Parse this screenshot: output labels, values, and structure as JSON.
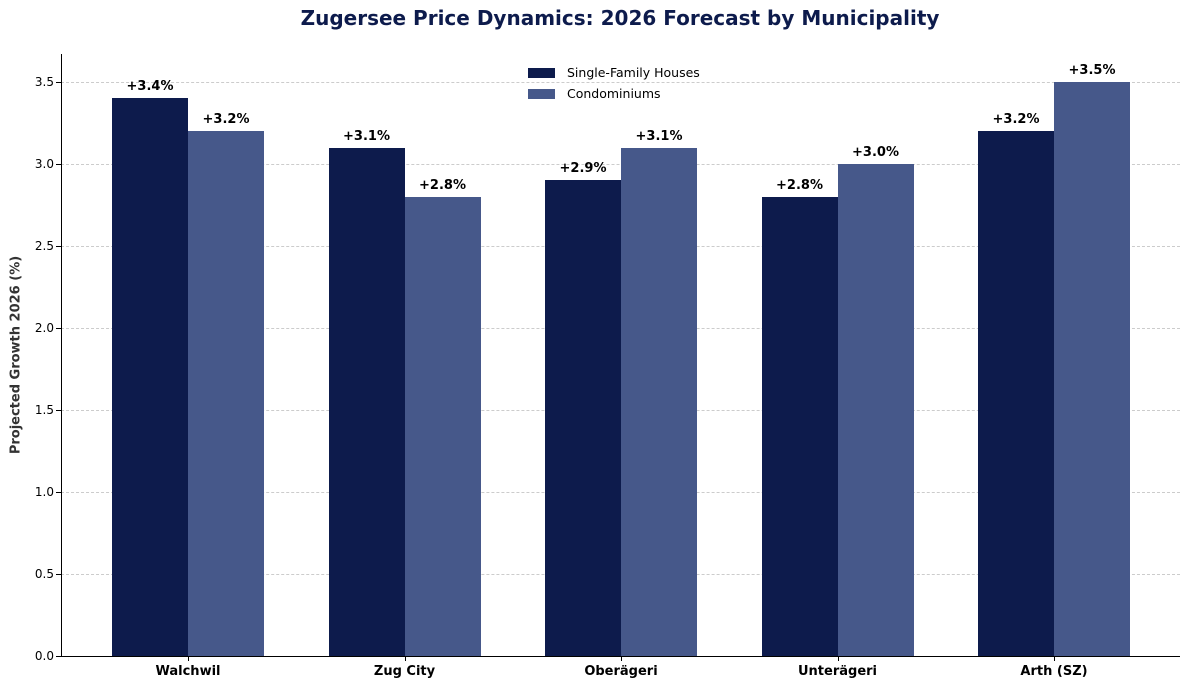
{
  "chart_data": {
    "type": "bar",
    "title": "Zugersee Price Dynamics: 2026 Forecast by Municipality",
    "xlabel": "",
    "ylabel": "Projected Growth 2026 (%)",
    "categories": [
      "Walchwil",
      "Zug City",
      "Oberägeri",
      "Unterägeri",
      "Arth (SZ)"
    ],
    "series": [
      {
        "name": "Single-Family Houses",
        "color": "#0d1b4c",
        "values": [
          3.4,
          3.1,
          2.9,
          2.8,
          3.2
        ],
        "labels": [
          "+3.4%",
          "+3.1%",
          "+2.9%",
          "+2.8%",
          "+3.2%"
        ]
      },
      {
        "name": "Condominiums",
        "color": "#46588a",
        "values": [
          3.2,
          2.8,
          3.1,
          3.0,
          3.5
        ],
        "labels": [
          "+3.2%",
          "+2.8%",
          "+3.1%",
          "+3.0%",
          "+3.5%"
        ]
      }
    ],
    "ylim": [
      0,
      3.67
    ],
    "yticks": [
      "0.0",
      "0.5",
      "1.0",
      "1.5",
      "2.0",
      "2.5",
      "3.0",
      "3.5"
    ],
    "grid": "y dashed",
    "legend_position": "upper center"
  }
}
